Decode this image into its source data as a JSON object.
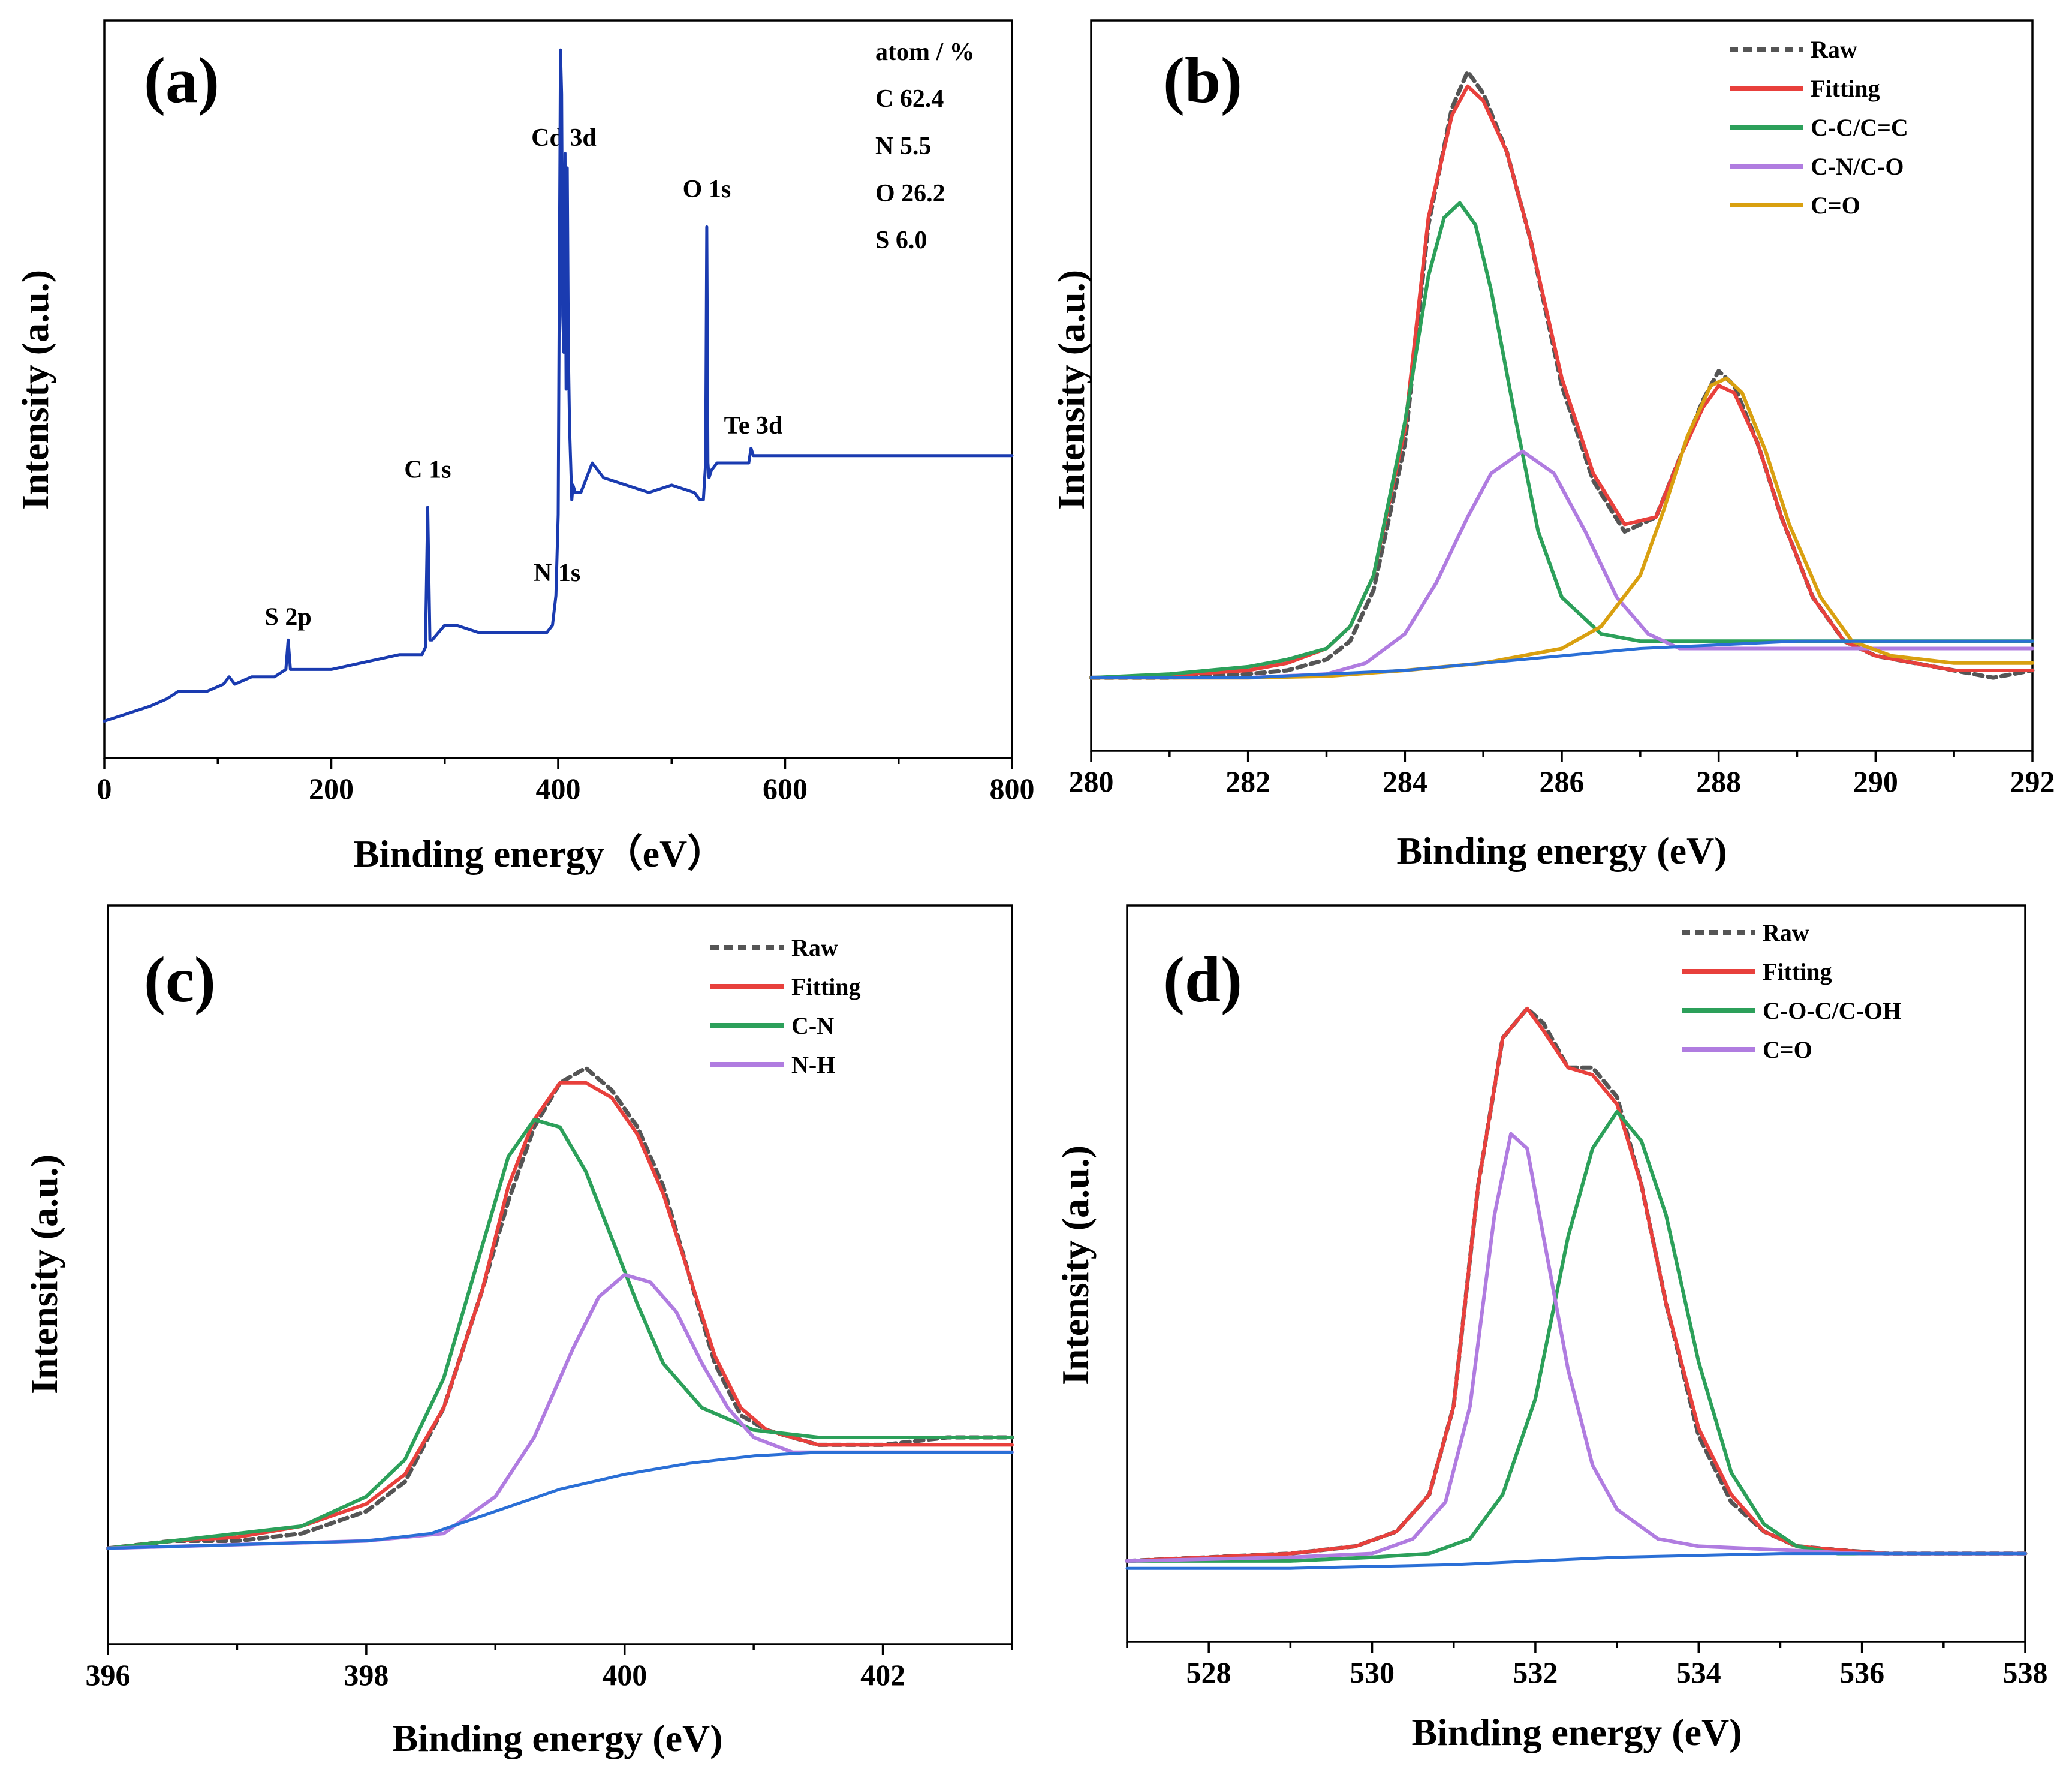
{
  "figure_title": "XPS spectra",
  "colors": {
    "raw": "#555555",
    "fitting": "#e8403c",
    "green": "#2ca05a",
    "purple": "#b07ce0",
    "orange": "#d9a010",
    "background": "#2a6fd6",
    "survey": "#1a3bb0"
  },
  "chart_data": [
    {
      "id": "a",
      "type": "line",
      "panel_tag": "(a)",
      "xlabel": "Binding energy（eV）",
      "ylabel": "Intensity (a.u.)",
      "xlim": [
        0,
        800
      ],
      "ylim": [
        0,
        100
      ],
      "xticks": [
        0,
        200,
        400,
        600,
        800
      ],
      "xtick_labels": [
        "0",
        "200",
        "400",
        "600",
        "800"
      ],
      "composition": {
        "header": "atom / %",
        "lines": [
          "C 62.4",
          "N 5.5",
          "O 26.2",
          "S 6.0"
        ]
      },
      "peak_labels": [
        {
          "text": "S 2p",
          "x": 162,
          "y": 18
        },
        {
          "text": "C 1s",
          "x": 285,
          "y": 38
        },
        {
          "text": "N 1s",
          "x": 399,
          "y": 24
        },
        {
          "text": "Cd 3d",
          "x": 405,
          "y": 83
        },
        {
          "text": "O 1s",
          "x": 531,
          "y": 76
        },
        {
          "text": "Te 3d",
          "x": 572,
          "y": 44
        }
      ],
      "series": [
        {
          "name": "Survey",
          "color_key": "survey",
          "style": "solid",
          "width": 5,
          "x": [
            0,
            20,
            40,
            55,
            65,
            75,
            90,
            105,
            110,
            115,
            130,
            150,
            160,
            162,
            164,
            175,
            200,
            230,
            260,
            280,
            283,
            285,
            287,
            289,
            300,
            310,
            330,
            360,
            390,
            395,
            398,
            400,
            402,
            403,
            404,
            405,
            406,
            407,
            408,
            409,
            410,
            411,
            412,
            413,
            415,
            420,
            425,
            430,
            440,
            460,
            480,
            500,
            520,
            525,
            528,
            530,
            531,
            532,
            533,
            535,
            540,
            560,
            568,
            570,
            572,
            575,
            580,
            600,
            650,
            700,
            750,
            800
          ],
          "y": [
            5,
            6,
            7,
            8,
            9,
            9,
            9,
            10,
            11,
            10,
            11,
            11,
            12,
            16,
            12,
            12,
            12,
            13,
            14,
            14,
            15,
            34,
            16,
            16,
            18,
            18,
            17,
            17,
            17,
            18,
            22,
            33,
            96,
            90,
            60,
            55,
            82,
            50,
            80,
            55,
            45,
            40,
            35,
            37,
            36,
            36,
            38,
            40,
            38,
            37,
            36,
            37,
            36,
            35,
            35,
            40,
            72,
            40,
            38,
            39,
            40,
            40,
            40,
            42,
            41,
            41,
            41,
            41,
            41,
            41,
            41,
            41
          ]
        }
      ]
    },
    {
      "id": "b",
      "type": "line",
      "panel_tag": "(b)",
      "xlabel": "Binding energy (eV)",
      "ylabel": "Intensity (a.u.)",
      "xlim": [
        280,
        292
      ],
      "ylim": [
        0,
        100
      ],
      "xticks": [
        280,
        282,
        284,
        286,
        288,
        290,
        292
      ],
      "xtick_labels": [
        "280",
        "282",
        "284",
        "286",
        "288",
        "290",
        "292"
      ],
      "legend": [
        "Raw",
        "Fitting",
        "C-C/C=C",
        "C-N/C-O",
        "C=O"
      ],
      "series": [
        {
          "name": "Raw",
          "color_key": "raw",
          "style": "dashed",
          "width": 7,
          "x": [
            280,
            281,
            282,
            282.5,
            283,
            283.3,
            283.6,
            284,
            284.3,
            284.6,
            284.8,
            285,
            285.3,
            285.6,
            286,
            286.4,
            286.8,
            287.2,
            287.5,
            287.8,
            288,
            288.2,
            288.5,
            288.8,
            289.2,
            289.6,
            290,
            290.5,
            291,
            291.5,
            292
          ],
          "y": [
            10,
            10,
            10.5,
            11,
            12.5,
            15,
            22,
            42,
            72,
            88,
            93,
            90,
            82,
            70,
            50,
            37,
            30,
            32,
            40,
            48,
            52,
            50,
            42,
            32,
            21,
            15,
            13,
            12,
            11,
            10,
            11
          ]
        },
        {
          "name": "Fitting",
          "color_key": "fitting",
          "style": "solid",
          "width": 6,
          "x": [
            280,
            281,
            282,
            282.5,
            283,
            283.3,
            283.6,
            284,
            284.3,
            284.6,
            284.8,
            285,
            285.3,
            285.6,
            286,
            286.4,
            286.8,
            287.2,
            287.5,
            287.8,
            288,
            288.2,
            288.5,
            288.8,
            289.2,
            289.6,
            290,
            290.5,
            291,
            291.5,
            292
          ],
          "y": [
            10,
            10.3,
            11,
            12,
            14,
            17,
            24,
            44,
            73,
            87,
            91,
            89,
            82,
            70,
            51,
            38,
            31,
            32,
            40,
            47,
            50,
            49,
            42,
            32,
            21,
            15,
            13,
            12,
            11,
            11,
            11
          ]
        },
        {
          "name": "C-C/C=C",
          "color_key": "green",
          "style": "solid",
          "width": 6,
          "x": [
            280,
            281,
            282,
            282.5,
            283,
            283.3,
            283.6,
            284,
            284.3,
            284.5,
            284.7,
            284.9,
            285.1,
            285.4,
            285.7,
            286,
            286.5,
            287,
            288,
            289,
            290,
            291,
            292
          ],
          "y": [
            10,
            10.5,
            11.5,
            12.5,
            14,
            17,
            24,
            45,
            65,
            73,
            75,
            72,
            63,
            46,
            30,
            21,
            16,
            15,
            15,
            15,
            15,
            15,
            15
          ]
        },
        {
          "name": "C-N/C-O",
          "color_key": "purple",
          "style": "solid",
          "width": 6,
          "x": [
            280,
            282,
            283,
            283.5,
            284,
            284.4,
            284.8,
            285.1,
            285.5,
            285.9,
            286.3,
            286.7,
            287.1,
            287.5,
            288,
            289,
            290,
            291,
            292
          ],
          "y": [
            10,
            10,
            10.5,
            12,
            16,
            23,
            32,
            38,
            41,
            38,
            30,
            21,
            16,
            14,
            14,
            14,
            14,
            14,
            14
          ]
        },
        {
          "name": "C=O",
          "color_key": "orange",
          "style": "solid",
          "width": 6,
          "x": [
            280,
            282,
            283,
            284,
            285,
            286,
            286.5,
            287,
            287.3,
            287.6,
            287.9,
            288.1,
            288.3,
            288.6,
            288.9,
            289.3,
            289.7,
            290.2,
            291,
            292
          ],
          "y": [
            10,
            10,
            10.2,
            11,
            12,
            14,
            17,
            24,
            33,
            43,
            50,
            51,
            49,
            41,
            31,
            21,
            15,
            13,
            12,
            12
          ]
        },
        {
          "name": "Background",
          "color_key": "background",
          "style": "solid",
          "width": 5,
          "x": [
            280,
            282,
            284,
            285,
            286,
            287,
            288,
            289,
            290,
            291,
            292
          ],
          "y": [
            10,
            10,
            11,
            12,
            13,
            14,
            14.5,
            15,
            15,
            15,
            15
          ]
        }
      ]
    },
    {
      "id": "c",
      "type": "line",
      "panel_tag": "(c)",
      "xlabel": "Binding energy (eV)",
      "ylabel": "Intensity (a.u.)",
      "xlim": [
        396,
        403
      ],
      "ylim": [
        0,
        100
      ],
      "xticks": [
        396,
        398,
        400,
        402
      ],
      "xtick_labels": [
        "396",
        "398",
        "400",
        "402"
      ],
      "legend": [
        "Raw",
        "Fitting",
        "C-N",
        "N-H"
      ],
      "series": [
        {
          "name": "Raw",
          "color_key": "raw",
          "style": "dashed",
          "width": 7,
          "x": [
            396,
            396.5,
            397,
            397.5,
            398,
            398.3,
            398.6,
            398.9,
            399.1,
            399.3,
            399.5,
            399.7,
            399.9,
            400.1,
            400.3,
            400.5,
            400.7,
            400.9,
            401.1,
            401.5,
            402,
            402.5,
            403
          ],
          "y": [
            13,
            14,
            14,
            15,
            18,
            22,
            32,
            48,
            60,
            70,
            76,
            78,
            75,
            70,
            62,
            50,
            38,
            31,
            29,
            27,
            27,
            28,
            28
          ]
        },
        {
          "name": "Fitting",
          "color_key": "fitting",
          "style": "solid",
          "width": 6,
          "x": [
            396,
            396.5,
            397,
            397.5,
            398,
            398.3,
            398.6,
            398.9,
            399.1,
            399.3,
            399.5,
            399.7,
            399.9,
            400.1,
            400.3,
            400.5,
            400.7,
            400.9,
            401.1,
            401.5,
            402,
            402.5,
            403
          ],
          "y": [
            13,
            14,
            14.5,
            16,
            19,
            23,
            32,
            48,
            62,
            71,
            76,
            76,
            74,
            69,
            61,
            50,
            39,
            32,
            29,
            27,
            27,
            27,
            27
          ]
        },
        {
          "name": "C-N",
          "color_key": "green",
          "style": "solid",
          "width": 6,
          "x": [
            396,
            396.5,
            397,
            397.5,
            398,
            398.3,
            398.6,
            398.9,
            399.1,
            399.3,
            399.5,
            399.7,
            399.9,
            400.1,
            400.3,
            400.6,
            401,
            401.5,
            402,
            403
          ],
          "y": [
            13,
            14,
            15,
            16,
            20,
            25,
            36,
            54,
            66,
            71,
            70,
            64,
            55,
            46,
            38,
            32,
            29,
            28,
            28,
            28
          ]
        },
        {
          "name": "N-H",
          "color_key": "purple",
          "style": "solid",
          "width": 6,
          "x": [
            396,
            397,
            398,
            398.6,
            399,
            399.3,
            399.6,
            399.8,
            400,
            400.2,
            400.4,
            400.6,
            400.8,
            401,
            401.3,
            401.7,
            402,
            403
          ],
          "y": [
            13,
            13.5,
            14,
            15,
            20,
            28,
            40,
            47,
            50,
            49,
            45,
            38,
            32,
            28,
            26,
            26,
            26,
            26
          ]
        },
        {
          "name": "Background",
          "color_key": "background",
          "style": "solid",
          "width": 5,
          "x": [
            396,
            397,
            398,
            398.5,
            399,
            399.5,
            400,
            400.5,
            401,
            401.5,
            402,
            403
          ],
          "y": [
            13,
            13.5,
            14,
            15,
            18,
            21,
            23,
            24.5,
            25.5,
            26,
            26,
            26
          ]
        }
      ]
    },
    {
      "id": "d",
      "type": "line",
      "panel_tag": "(d)",
      "xlabel": "Binding energy (eV)",
      "ylabel": "Intensity (a.u.)",
      "xlim": [
        527,
        538
      ],
      "ylim": [
        0,
        100
      ],
      "xticks": [
        528,
        530,
        532,
        534,
        536,
        538
      ],
      "xtick_labels": [
        "528",
        "530",
        "532",
        "534",
        "536",
        "538"
      ],
      "legend": [
        "Raw",
        "Fitting",
        "C-O-C/C-OH",
        "C=O"
      ],
      "series": [
        {
          "name": "Raw",
          "color_key": "raw",
          "style": "dashed",
          "width": 7,
          "x": [
            527,
            528,
            529,
            529.8,
            530.3,
            530.7,
            531,
            531.3,
            531.6,
            531.9,
            532.1,
            532.4,
            532.7,
            533,
            533.3,
            533.6,
            534,
            534.4,
            534.8,
            535.2,
            535.7,
            536.3,
            537,
            538
          ],
          "y": [
            11,
            11.5,
            12,
            13,
            15,
            20,
            32,
            62,
            82,
            86,
            84,
            78,
            78,
            74,
            62,
            46,
            28,
            19,
            15,
            13,
            12.5,
            12,
            12,
            12
          ]
        },
        {
          "name": "Fitting",
          "color_key": "fitting",
          "style": "solid",
          "width": 6,
          "x": [
            527,
            528,
            529,
            529.8,
            530.3,
            530.7,
            531,
            531.3,
            531.6,
            531.9,
            532.1,
            532.4,
            532.7,
            533,
            533.3,
            533.6,
            534,
            534.4,
            534.8,
            535.2,
            535.7,
            536.3,
            537,
            538
          ],
          "y": [
            11,
            11.5,
            12,
            13,
            15,
            20,
            32,
            62,
            82,
            86,
            83,
            78,
            77,
            73,
            62,
            46,
            29,
            20,
            15,
            13,
            12.5,
            12,
            12,
            12
          ]
        },
        {
          "name": "C-O-C/C-OH",
          "color_key": "green",
          "style": "solid",
          "width": 6,
          "x": [
            527,
            529,
            530,
            530.7,
            531.2,
            531.6,
            532,
            532.4,
            532.7,
            533,
            533.3,
            533.6,
            534,
            534.4,
            534.8,
            535.2,
            535.7,
            536.5,
            538
          ],
          "y": [
            11,
            11,
            11.5,
            12,
            14,
            20,
            33,
            55,
            67,
            72,
            68,
            58,
            38,
            23,
            16,
            13,
            12,
            12,
            12
          ]
        },
        {
          "name": "C=O",
          "color_key": "purple",
          "style": "solid",
          "width": 6,
          "x": [
            527,
            529,
            530,
            530.5,
            530.9,
            531.2,
            531.5,
            531.7,
            531.9,
            532.1,
            532.4,
            532.7,
            533,
            533.5,
            534,
            535,
            536,
            538
          ],
          "y": [
            11,
            11.5,
            12,
            14,
            19,
            32,
            58,
            69,
            67,
            55,
            37,
            24,
            18,
            14,
            13,
            12.5,
            12,
            12
          ]
        },
        {
          "name": "Background",
          "color_key": "background",
          "style": "solid",
          "width": 5,
          "x": [
            527,
            529,
            531,
            533,
            535,
            536,
            538
          ],
          "y": [
            10,
            10,
            10.5,
            11.5,
            12,
            12,
            12
          ]
        }
      ]
    }
  ]
}
